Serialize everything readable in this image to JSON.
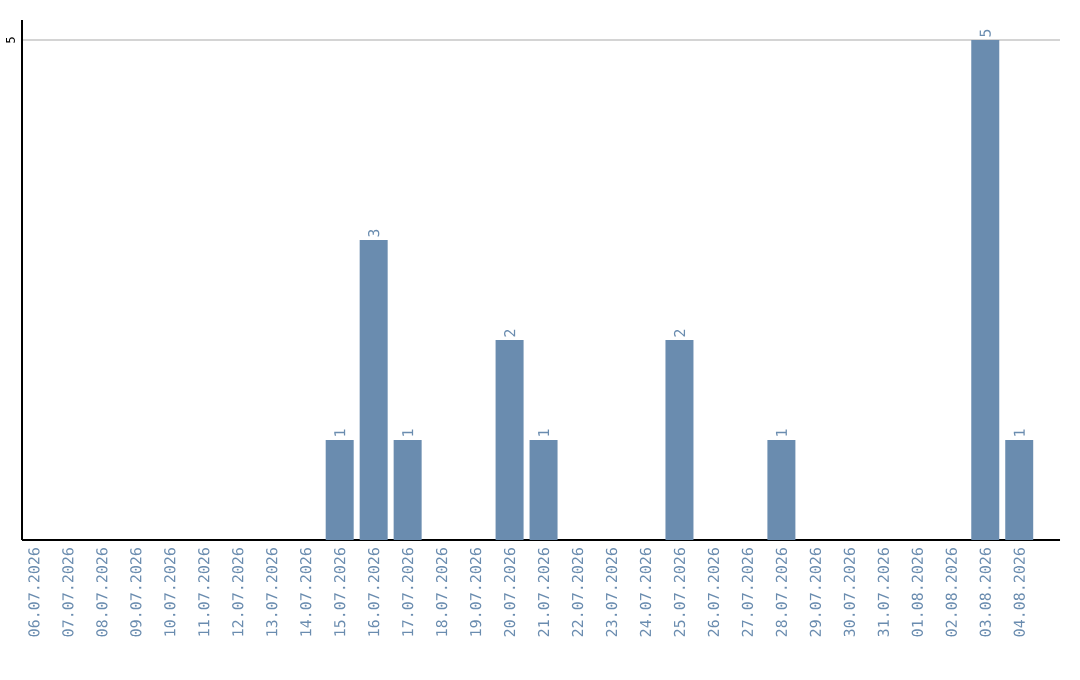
{
  "chart_data": {
    "type": "bar",
    "categories": [
      "06.07.2026",
      "07.07.2026",
      "08.07.2026",
      "09.07.2026",
      "10.07.2026",
      "11.07.2026",
      "12.07.2026",
      "13.07.2026",
      "14.07.2026",
      "15.07.2026",
      "16.07.2026",
      "17.07.2026",
      "18.07.2026",
      "19.07.2026",
      "20.07.2026",
      "21.07.2026",
      "22.07.2026",
      "23.07.2026",
      "24.07.2026",
      "25.07.2026",
      "26.07.2026",
      "27.07.2026",
      "28.07.2026",
      "29.07.2026",
      "30.07.2026",
      "31.07.2026",
      "01.08.2026",
      "02.08.2026",
      "03.08.2026",
      "04.08.2026"
    ],
    "values": [
      0,
      0,
      0,
      0,
      0,
      0,
      0,
      0,
      0,
      1,
      3,
      1,
      0,
      0,
      2,
      1,
      0,
      0,
      0,
      2,
      0,
      0,
      1,
      0,
      0,
      0,
      0,
      0,
      5,
      1
    ],
    "value_labels": [
      null,
      null,
      null,
      null,
      null,
      null,
      null,
      null,
      null,
      "1",
      "3",
      "1",
      null,
      null,
      "2",
      "1",
      null,
      null,
      null,
      "2",
      null,
      null,
      "1",
      null,
      null,
      null,
      null,
      null,
      "5",
      "1"
    ],
    "color": "#6a8caf",
    "ylim": [
      0,
      5.2
    ],
    "yticks": [
      5
    ],
    "grid": "y"
  }
}
